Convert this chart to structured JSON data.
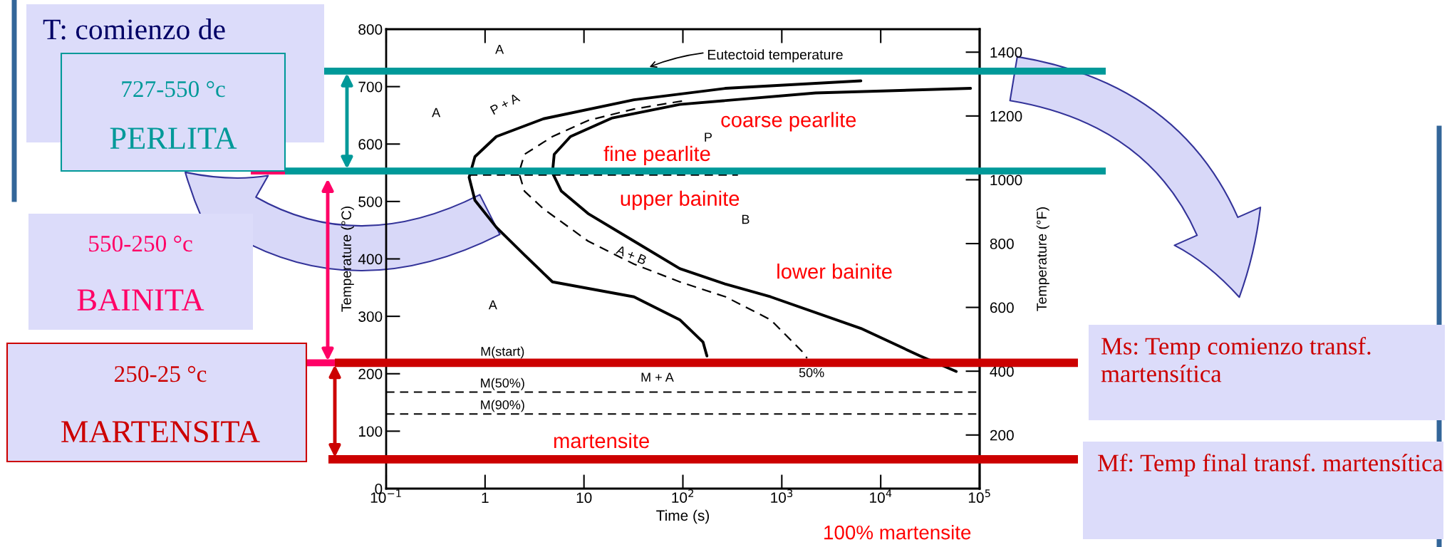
{
  "chart_data": {
    "type": "line",
    "log": "x",
    "xlabel": "Time (s)",
    "ylabel": "Temperature (°C)",
    "y2label": "Temperature (°F)",
    "xlim": [
      0.1,
      100000
    ],
    "xticks": [
      {
        "value": 0.1,
        "label": "10$^{−1}$"
      },
      1,
      10,
      {
        "value": 100,
        "label": "10$^{2}$"
      },
      {
        "value": 1000,
        "label": "10$^{3}$"
      },
      {
        "value": 10000,
        "label": "10$^{4}$"
      },
      {
        "value": 100000,
        "label": "10$^{5}$"
      }
    ],
    "ylim": [
      0,
      800
    ],
    "yticks": [
      0,
      100,
      200,
      300,
      400,
      500,
      600,
      700,
      800
    ],
    "y2lim": [
      32,
      1472
    ],
    "y2ticks": [
      200,
      400,
      600,
      800,
      1000,
      1200,
      1400
    ],
    "grid": false,
    "marker": "none",
    "series": [
      {
        "color": "#000000",
        "line_style": "solid",
        "x": [
          6300,
          270,
          32,
          3.9,
          1.3,
          0.79,
          0.69,
          0.79,
          1.3,
          2.5,
          4.8,
          32,
          93,
          160,
          175
        ],
        "values": [
          710,
          697,
          677,
          644,
          613,
          578,
          542,
          502,
          455,
          407,
          360,
          334,
          294,
          255,
          231
        ]
      },
      {
        "color": "#000000",
        "line_style": "solid",
        "x": [
          81000,
          2200,
          93,
          19,
          7.3,
          5,
          4.8,
          5.9,
          11,
          32,
          93,
          270,
          770,
          6300,
          25000,
          58000
        ],
        "values": [
          697,
          689,
          669,
          645,
          613,
          582,
          550,
          518,
          479,
          431,
          383,
          356,
          334,
          279,
          231,
          204
        ]
      },
      {
        "color": "#000000",
        "line_style": "dashed",
        "x": [
          98,
          32,
          11,
          4.8,
          2.5,
          2.2,
          2.5,
          3.9,
          11,
          32,
          93,
          270,
          770,
          1600,
          1800
        ],
        "values": [
          675,
          661,
          641,
          613,
          582,
          550,
          518,
          487,
          431,
          391,
          360,
          334,
          294,
          239,
          227
        ]
      },
      {
        "color": "#000000",
        "line_style": "dashed",
        "x": [
          0.69,
          360
        ],
        "values": [
          546,
          546
        ]
      },
      {
        "color": "#000000",
        "line_style": "dashed",
        "x": [
          0.1,
          100000
        ],
        "values": [
          168,
          168
        ]
      },
      {
        "color": "#000000",
        "line_style": "dashed",
        "x": [
          0.1,
          100000
        ],
        "values": [
          130,
          130
        ]
      }
    ],
    "ref_lines": [
      {
        "axis": "y",
        "value": 727,
        "color": "#009999"
      },
      {
        "axis": "y",
        "value": 553,
        "color": "#009999"
      },
      {
        "axis": "y",
        "value": 219,
        "color": "#cc0000"
      },
      {
        "axis": "y",
        "value": 51,
        "color": "#cc0000"
      }
    ],
    "annotations": [
      "T: comienzo de",
      "727-550 °c",
      "PERLITA",
      "550-250 °c",
      "BAINITA",
      "250-25 °c",
      "MARTENSITA",
      "Ms: Temp comienzo transf. martensítica",
      "Mf: Temp final transf. martensítica",
      "100% martensite",
      {
        "text": "Eutectoid temperature",
        "x": 44,
        "y": 733
      },
      "A",
      "A",
      "A",
      "P",
      "B",
      "P + A",
      "A + B",
      "M(start)",
      "M(50%)",
      "M(90%)",
      "M + A",
      "50%",
      "coarse pearlite",
      "fine pearlite",
      "upper bainite",
      "lower bainite",
      "martensite"
    ]
  }
}
